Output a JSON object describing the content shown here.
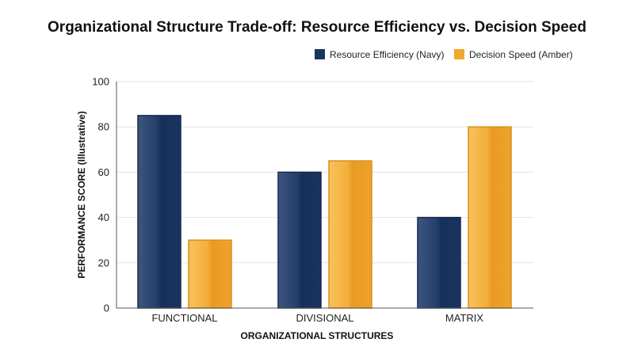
{
  "chart_data": {
    "type": "bar",
    "title": "Organizational Structure Trade-off: Resource Efficiency vs. Decision Speed",
    "xlabel": "ORGANIZATIONAL STRUCTURES",
    "ylabel": "PERFORMANCE SCORE (Illustrative)",
    "categories": [
      "FUNCTIONAL",
      "DIVISIONAL",
      "MATRIX"
    ],
    "series": [
      {
        "name": "Resource Efficiency (Navy)",
        "values": [
          85,
          60,
          40
        ],
        "color": "#1c3560"
      },
      {
        "name": "Decision Speed (Amber)",
        "values": [
          30,
          65,
          80
        ],
        "color": "#f0a830"
      }
    ],
    "ylim": [
      0,
      100
    ],
    "yticks": [
      "0",
      "20",
      "40",
      "60",
      "80",
      "100"
    ],
    "grid": true,
    "legend_position": "top-right"
  }
}
